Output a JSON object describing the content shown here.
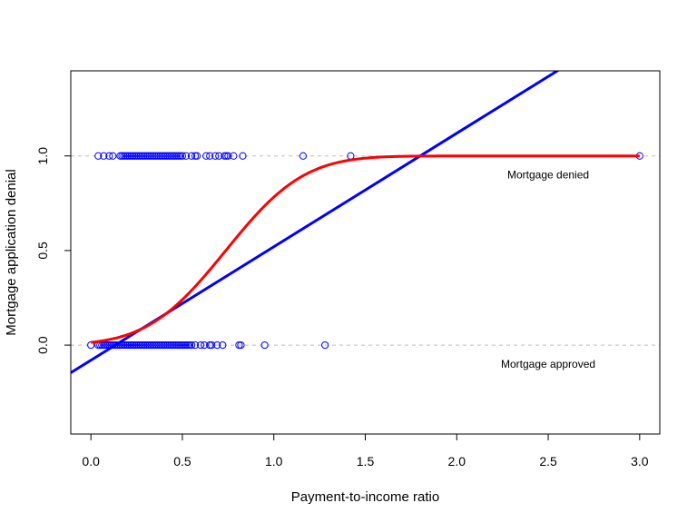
{
  "chart_data": {
    "type": "scatter",
    "title": "",
    "xlabel": "Payment-to-income ratio",
    "ylabel": "Mortgage application denial",
    "xlim": [
      -0.11,
      3.11
    ],
    "ylim": [
      -0.47,
      1.45
    ],
    "xticks": [
      0.0,
      0.5,
      1.0,
      1.5,
      2.0,
      2.5,
      3.0
    ],
    "xtick_labels": [
      "0.0",
      "0.5",
      "1.0",
      "1.5",
      "2.0",
      "2.5",
      "3.0"
    ],
    "yticks": [
      0.0,
      0.5,
      1.0
    ],
    "ytick_labels": [
      "0.0",
      "0.5",
      "1.0"
    ],
    "reference_lines": [
      0,
      1
    ],
    "colors": {
      "points": "#0000ff",
      "linear_fit": "#0000ff",
      "probit_fit": "#ff0000",
      "reference": "#bebebe"
    },
    "series": [
      {
        "type": "scatter",
        "y": 1,
        "x": [
          0.04,
          0.07,
          0.1,
          0.12,
          0.16,
          0.17,
          0.18,
          0.19,
          0.2,
          0.21,
          0.22,
          0.23,
          0.24,
          0.25,
          0.26,
          0.27,
          0.28,
          0.29,
          0.3,
          0.31,
          0.32,
          0.33,
          0.34,
          0.35,
          0.36,
          0.37,
          0.38,
          0.39,
          0.4,
          0.41,
          0.42,
          0.43,
          0.44,
          0.45,
          0.46,
          0.47,
          0.48,
          0.49,
          0.5,
          0.52,
          0.55,
          0.57,
          0.58,
          0.63,
          0.65,
          0.68,
          0.7,
          0.73,
          0.74,
          0.75,
          0.78,
          0.83,
          1.16,
          1.42,
          3.0
        ]
      },
      {
        "type": "scatter",
        "y": 0,
        "x": [
          0.0,
          0.04,
          0.05,
          0.06,
          0.07,
          0.08,
          0.09,
          0.1,
          0.11,
          0.12,
          0.13,
          0.14,
          0.15,
          0.16,
          0.17,
          0.18,
          0.19,
          0.2,
          0.21,
          0.22,
          0.23,
          0.24,
          0.25,
          0.26,
          0.27,
          0.28,
          0.29,
          0.3,
          0.31,
          0.32,
          0.33,
          0.34,
          0.35,
          0.36,
          0.37,
          0.38,
          0.39,
          0.4,
          0.41,
          0.42,
          0.43,
          0.44,
          0.45,
          0.46,
          0.47,
          0.48,
          0.49,
          0.5,
          0.51,
          0.52,
          0.53,
          0.54,
          0.55,
          0.57,
          0.6,
          0.62,
          0.65,
          0.66,
          0.69,
          0.72,
          0.81,
          0.82,
          0.95,
          1.28
        ]
      },
      {
        "type": "line",
        "intercept": -0.08,
        "slope": 0.6
      },
      {
        "type": "probit",
        "intercept": -2.19,
        "slope": 2.97
      }
    ],
    "annotations": [
      {
        "text": "Mortgage denied",
        "x": 2.5,
        "y": 0.9
      },
      {
        "text": "Mortgage approved",
        "x": 2.5,
        "y": -0.1
      }
    ]
  }
}
